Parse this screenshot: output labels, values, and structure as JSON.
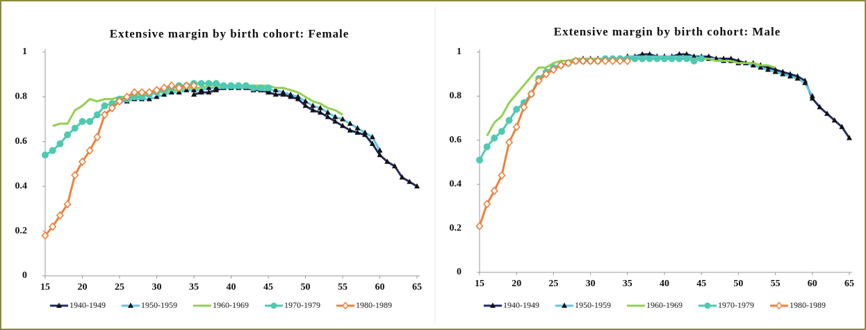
{
  "chart_data": [
    {
      "type": "line",
      "title": "Extensive margin by birth cohort: Female",
      "x": [
        15,
        16,
        17,
        18,
        19,
        20,
        21,
        22,
        23,
        24,
        25,
        26,
        27,
        28,
        29,
        30,
        31,
        32,
        33,
        34,
        35,
        36,
        37,
        38,
        39,
        40,
        41,
        42,
        43,
        44,
        45,
        46,
        47,
        48,
        49,
        50,
        51,
        52,
        53,
        54,
        55,
        56,
        57,
        58,
        59,
        60,
        61,
        62,
        63,
        64,
        65
      ],
      "xlim": [
        15,
        65
      ],
      "xticks": [
        15,
        20,
        25,
        30,
        35,
        40,
        45,
        50,
        55,
        60,
        65
      ],
      "ylim": [
        0,
        1
      ],
      "yticks": [
        0,
        0.2,
        0.4,
        0.6,
        0.8,
        1
      ],
      "series": [
        {
          "name": "1940-1949",
          "color": "#1f2a6b",
          "marker": "triangle",
          "values": [
            null,
            null,
            null,
            null,
            null,
            null,
            null,
            null,
            null,
            null,
            null,
            null,
            null,
            null,
            null,
            null,
            null,
            null,
            null,
            null,
            0.81,
            0.82,
            0.82,
            0.83,
            0.84,
            0.84,
            0.84,
            0.84,
            0.83,
            0.83,
            0.82,
            0.81,
            0.81,
            0.8,
            0.79,
            0.76,
            0.74,
            0.73,
            0.71,
            0.69,
            0.67,
            0.65,
            0.64,
            0.63,
            0.59,
            0.54,
            0.51,
            0.49,
            0.44,
            0.42,
            0.4
          ]
        },
        {
          "name": "1950-1959",
          "color": "#5bc8e8",
          "marker": "triangle",
          "values": [
            null,
            null,
            null,
            null,
            null,
            null,
            null,
            null,
            null,
            null,
            0.78,
            0.78,
            0.79,
            0.79,
            0.79,
            0.8,
            0.81,
            0.82,
            0.82,
            0.83,
            0.83,
            0.83,
            0.84,
            0.84,
            0.84,
            0.84,
            0.84,
            0.84,
            0.84,
            0.83,
            0.83,
            0.83,
            0.82,
            0.81,
            0.8,
            0.78,
            0.76,
            0.75,
            0.73,
            0.71,
            0.7,
            0.68,
            0.66,
            0.64,
            0.62,
            0.56,
            null,
            null,
            null,
            null,
            null
          ]
        },
        {
          "name": "1960-1969",
          "color": "#92d050",
          "marker": "none",
          "values": [
            null,
            0.67,
            0.68,
            0.68,
            0.74,
            0.76,
            0.79,
            0.78,
            0.79,
            0.79,
            0.8,
            0.8,
            0.81,
            0.81,
            0.81,
            0.82,
            0.82,
            0.83,
            0.83,
            0.84,
            0.84,
            0.84,
            0.85,
            0.85,
            0.85,
            0.85,
            0.85,
            0.85,
            0.85,
            0.85,
            0.85,
            0.84,
            0.84,
            0.83,
            0.82,
            0.8,
            0.78,
            0.77,
            0.75,
            0.74,
            0.72,
            null,
            null,
            null,
            null,
            null,
            null,
            null,
            null,
            null,
            null
          ]
        },
        {
          "name": "1970-1979",
          "color": "#4fc9b0",
          "marker": "circle",
          "values": [
            0.54,
            0.56,
            0.59,
            0.63,
            0.66,
            0.69,
            0.69,
            0.72,
            0.76,
            0.77,
            0.79,
            0.79,
            0.8,
            0.8,
            0.81,
            0.82,
            0.83,
            0.84,
            0.85,
            0.85,
            0.86,
            0.86,
            0.86,
            0.86,
            0.85,
            0.85,
            0.85,
            0.85,
            0.84,
            0.84,
            0.84,
            null,
            null,
            null,
            null,
            null,
            null,
            null,
            null,
            null,
            null,
            null,
            null,
            null,
            null,
            null,
            null,
            null,
            null,
            null,
            null
          ]
        },
        {
          "name": "1980-1989",
          "color": "#f07f3c",
          "marker": "diamond",
          "values": [
            0.18,
            0.22,
            0.27,
            0.32,
            0.45,
            0.51,
            0.56,
            0.62,
            0.72,
            0.75,
            0.78,
            0.8,
            0.82,
            0.82,
            0.82,
            0.83,
            0.84,
            0.85,
            0.84,
            0.85,
            0.85,
            null,
            null,
            null,
            null,
            null,
            null,
            null,
            null,
            null,
            null,
            null,
            null,
            null,
            null,
            null,
            null,
            null,
            null,
            null,
            null,
            null,
            null,
            null,
            null,
            null,
            null,
            null,
            null,
            null,
            null
          ]
        }
      ]
    },
    {
      "type": "line",
      "title": "Extensive margin by birth cohort: Male",
      "x": [
        15,
        16,
        17,
        18,
        19,
        20,
        21,
        22,
        23,
        24,
        25,
        26,
        27,
        28,
        29,
        30,
        31,
        32,
        33,
        34,
        35,
        36,
        37,
        38,
        39,
        40,
        41,
        42,
        43,
        44,
        45,
        46,
        47,
        48,
        49,
        50,
        51,
        52,
        53,
        54,
        55,
        56,
        57,
        58,
        59,
        60,
        61,
        62,
        63,
        64,
        65
      ],
      "xlim": [
        15,
        65
      ],
      "xticks": [
        15,
        20,
        25,
        30,
        35,
        40,
        45,
        50,
        55,
        60,
        65
      ],
      "ylim": [
        0,
        1
      ],
      "yticks": [
        0,
        0.2,
        0.4,
        0.6,
        0.8,
        1
      ],
      "series": [
        {
          "name": "1940-1949",
          "color": "#1f2a6b",
          "marker": "triangle",
          "values": [
            null,
            null,
            null,
            null,
            null,
            null,
            null,
            null,
            null,
            null,
            null,
            null,
            null,
            null,
            null,
            null,
            null,
            null,
            null,
            null,
            0.98,
            0.98,
            0.99,
            0.99,
            0.98,
            0.98,
            0.98,
            0.99,
            0.99,
            0.98,
            0.98,
            0.98,
            0.97,
            0.97,
            0.97,
            0.96,
            0.95,
            0.95,
            0.94,
            0.93,
            0.92,
            0.91,
            0.9,
            0.89,
            0.87,
            0.79,
            0.75,
            0.72,
            0.69,
            0.66,
            0.61
          ]
        },
        {
          "name": "1950-1959",
          "color": "#5bc8e8",
          "marker": "triangle",
          "values": [
            null,
            null,
            null,
            null,
            null,
            null,
            null,
            null,
            null,
            null,
            0.93,
            0.94,
            0.95,
            0.96,
            0.97,
            0.97,
            0.97,
            0.97,
            0.97,
            0.97,
            0.98,
            0.98,
            0.98,
            0.98,
            0.98,
            0.98,
            0.98,
            0.98,
            0.98,
            0.98,
            0.97,
            0.97,
            0.97,
            0.96,
            0.96,
            0.95,
            0.95,
            0.94,
            0.93,
            0.92,
            0.91,
            0.9,
            0.89,
            0.88,
            0.86,
            0.8,
            null,
            null,
            null,
            null,
            null
          ]
        },
        {
          "name": "1960-1969",
          "color": "#92d050",
          "marker": "none",
          "values": [
            null,
            0.62,
            0.68,
            0.71,
            0.77,
            0.81,
            0.85,
            0.89,
            0.93,
            0.93,
            0.95,
            0.96,
            0.96,
            0.97,
            0.97,
            0.97,
            0.97,
            0.97,
            0.97,
            0.97,
            0.97,
            0.97,
            0.97,
            0.97,
            0.97,
            0.97,
            0.97,
            0.97,
            0.97,
            0.97,
            0.97,
            0.97,
            0.96,
            0.96,
            0.96,
            0.95,
            0.95,
            0.95,
            0.94,
            0.94,
            0.93,
            null,
            null,
            null,
            null,
            null,
            null,
            null,
            null,
            null,
            null
          ]
        },
        {
          "name": "1970-1979",
          "color": "#4fc9b0",
          "marker": "circle",
          "values": [
            0.51,
            0.57,
            0.61,
            0.64,
            0.69,
            0.74,
            0.77,
            0.81,
            0.88,
            0.91,
            0.93,
            0.94,
            0.95,
            0.96,
            0.96,
            0.96,
            0.96,
            0.97,
            0.97,
            0.97,
            0.97,
            0.97,
            0.97,
            0.97,
            0.97,
            0.97,
            0.97,
            0.97,
            0.97,
            0.96,
            0.97,
            null,
            null,
            null,
            null,
            null,
            null,
            null,
            null,
            null,
            null,
            null,
            null,
            null,
            null,
            null,
            null,
            null,
            null,
            null,
            null
          ]
        },
        {
          "name": "1980-1989",
          "color": "#f07f3c",
          "marker": "diamond",
          "values": [
            0.21,
            0.31,
            0.37,
            0.44,
            0.59,
            0.66,
            0.75,
            0.81,
            0.87,
            0.9,
            0.92,
            0.94,
            0.95,
            0.96,
            0.96,
            0.96,
            0.96,
            0.96,
            0.96,
            0.96,
            0.96,
            null,
            null,
            null,
            null,
            null,
            null,
            null,
            null,
            null,
            null,
            null,
            null,
            null,
            null,
            null,
            null,
            null,
            null,
            null,
            null,
            null,
            null,
            null,
            null,
            null,
            null,
            null,
            null,
            null,
            null
          ]
        }
      ]
    }
  ]
}
